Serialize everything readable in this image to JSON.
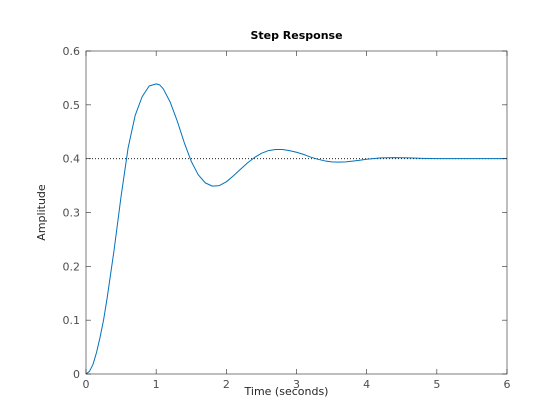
{
  "chart_data": {
    "type": "line",
    "title": "Step Response",
    "xlabel": "Time (seconds)",
    "ylabel": "Amplitude",
    "xlim": [
      0,
      6
    ],
    "ylim": [
      0,
      0.6
    ],
    "xticks": [
      0,
      1,
      2,
      3,
      4,
      5,
      6
    ],
    "yticks": [
      0,
      0.1,
      0.2,
      0.3,
      0.4,
      0.5,
      0.6
    ],
    "xtick_labels": [
      "0",
      "1",
      "2",
      "3",
      "4",
      "5",
      "6"
    ],
    "ytick_labels": [
      "0",
      "0.1",
      "0.2",
      "0.3",
      "0.4",
      "0.5",
      "0.6"
    ],
    "grid": false,
    "reference_line": {
      "y": 0.4,
      "style": "dotted",
      "color": "#000000"
    },
    "series": [
      {
        "color": "#0072bd",
        "x": [
          0,
          0.05,
          0.1,
          0.15,
          0.2,
          0.25,
          0.3,
          0.4,
          0.5,
          0.6,
          0.7,
          0.8,
          0.9,
          1.0,
          1.05,
          1.1,
          1.2,
          1.3,
          1.4,
          1.5,
          1.6,
          1.7,
          1.8,
          1.9,
          2.0,
          2.1,
          2.2,
          2.3,
          2.4,
          2.5,
          2.6,
          2.7,
          2.8,
          2.9,
          3.0,
          3.1,
          3.2,
          3.3,
          3.4,
          3.5,
          3.6,
          3.7,
          3.8,
          3.9,
          4.0,
          4.2,
          4.4,
          4.6,
          4.8,
          5.0,
          5.2,
          5.4,
          5.6,
          5.8,
          6.0
        ],
        "y": [
          0,
          0.005,
          0.018,
          0.04,
          0.068,
          0.1,
          0.14,
          0.23,
          0.33,
          0.42,
          0.48,
          0.515,
          0.535,
          0.539,
          0.537,
          0.53,
          0.505,
          0.47,
          0.43,
          0.395,
          0.37,
          0.355,
          0.349,
          0.35,
          0.357,
          0.368,
          0.38,
          0.392,
          0.402,
          0.41,
          0.415,
          0.417,
          0.417,
          0.415,
          0.412,
          0.408,
          0.403,
          0.399,
          0.396,
          0.394,
          0.3935,
          0.394,
          0.3955,
          0.397,
          0.399,
          0.4015,
          0.402,
          0.4015,
          0.4005,
          0.4,
          0.4,
          0.4,
          0.4,
          0.4,
          0.4
        ]
      }
    ]
  }
}
